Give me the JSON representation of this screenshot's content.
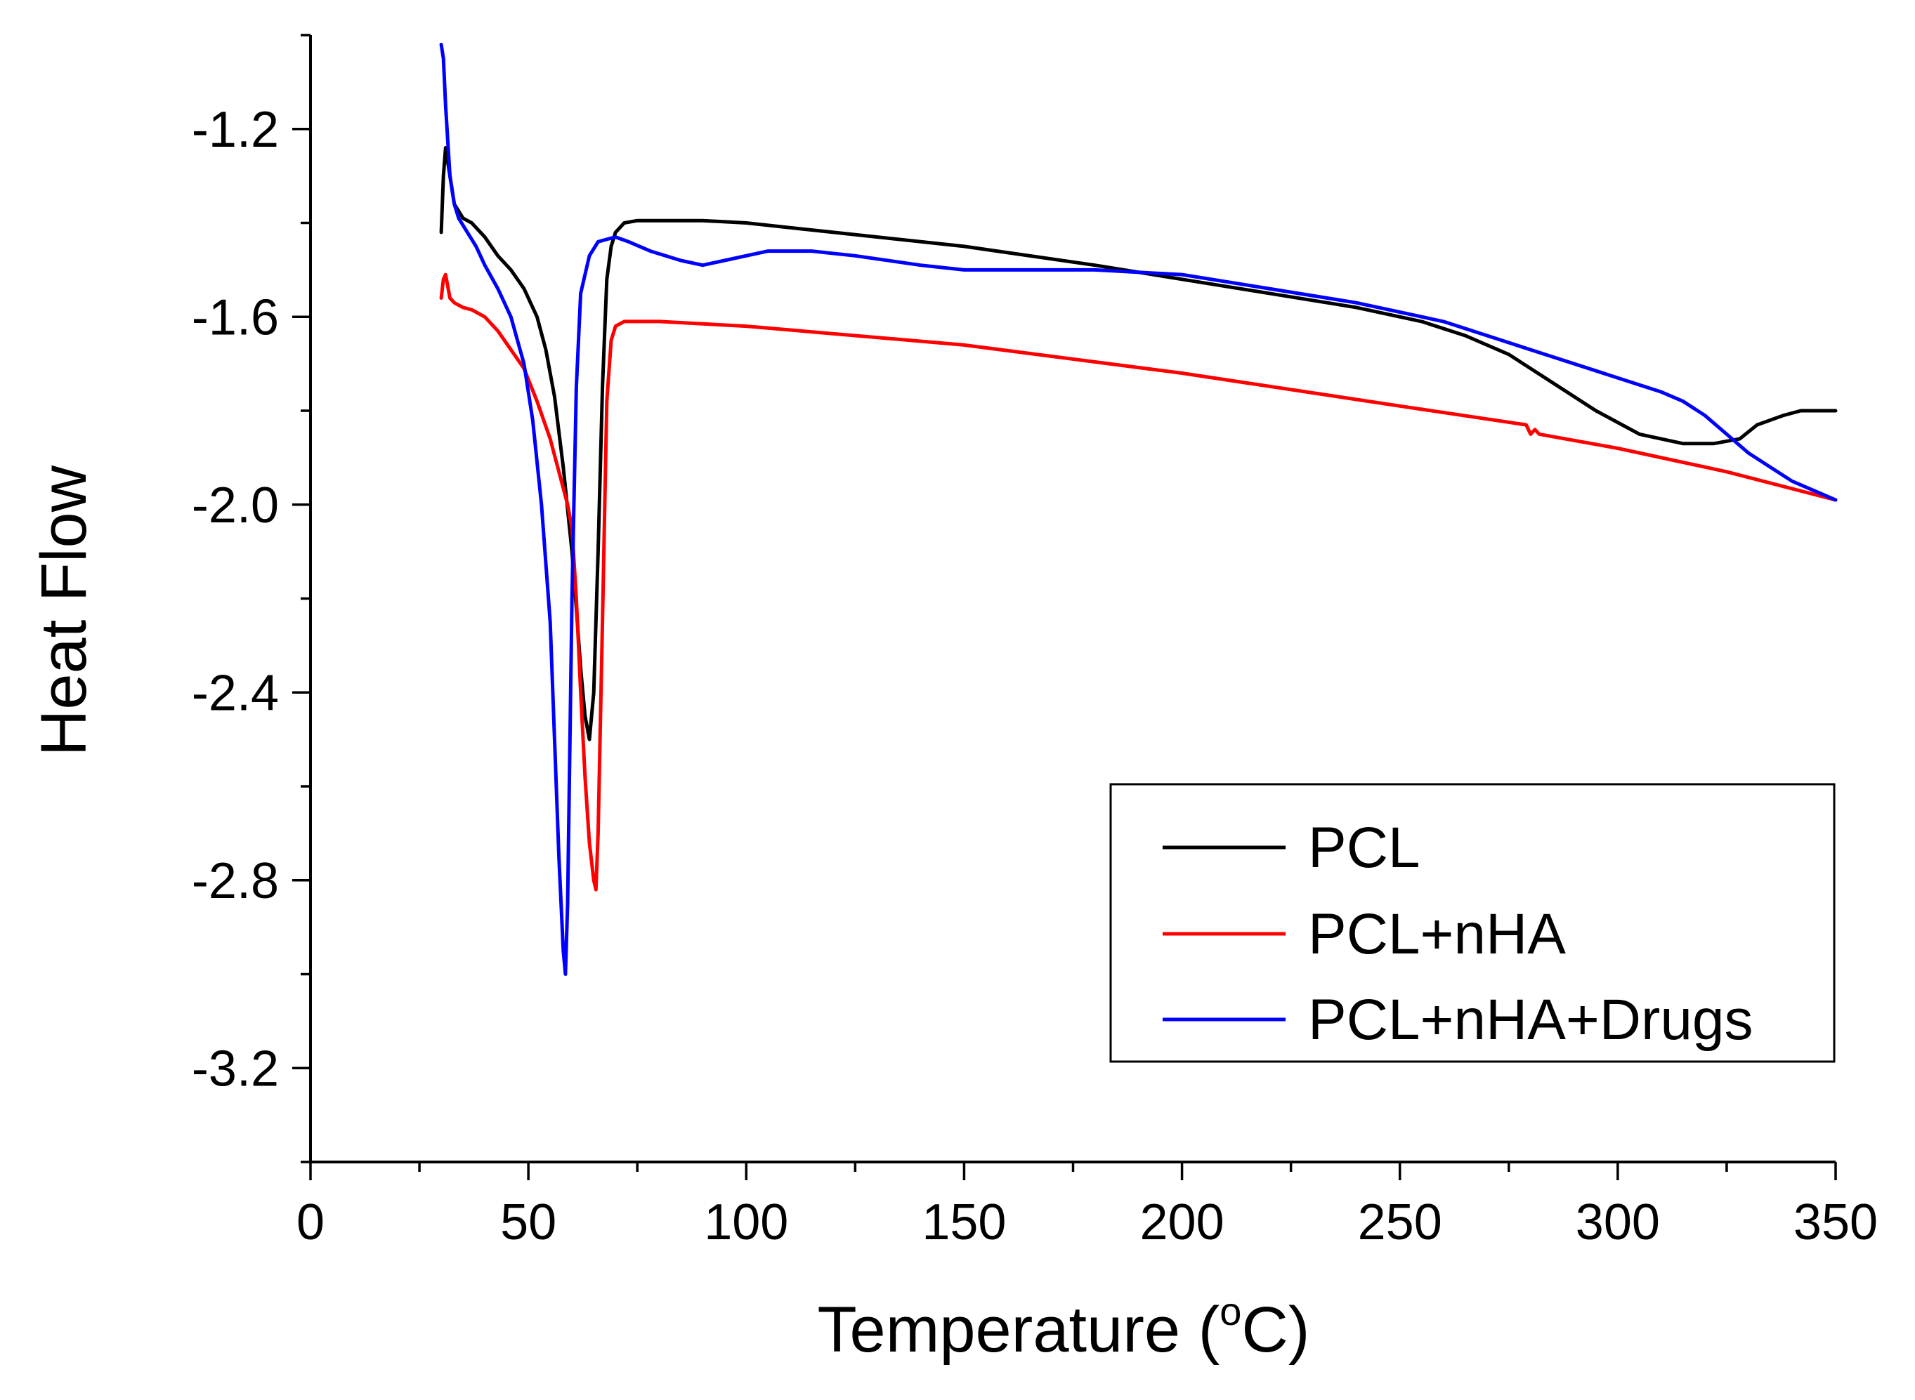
{
  "chart_data": {
    "type": "line",
    "title": "",
    "xlabel": "Temperature (",
    "xlabel_sup": "o",
    "xlabel_suffix": "C)",
    "ylabel": "Heat Flow",
    "xlim": [
      0,
      350
    ],
    "ylim": [
      -3.4,
      -1.0
    ],
    "xticks": [
      0,
      50,
      100,
      150,
      200,
      250,
      300,
      350
    ],
    "xtick_labels": [
      "0",
      "50",
      "100",
      "150",
      "200",
      "250",
      "300",
      "350"
    ],
    "yticks": [
      -1.2,
      -1.6,
      -2.0,
      -2.4,
      -2.8,
      -3.2
    ],
    "ytick_labels": [
      "-1.2",
      "-1.6",
      "-2.0",
      "-2.4",
      "-2.8",
      "-3.2"
    ],
    "grid": false,
    "legend_position": "bottom-right",
    "series": [
      {
        "name": "PCL",
        "color": "#000000",
        "x": [
          30,
          30.5,
          31,
          32,
          33,
          35,
          37,
          40,
          43,
          46,
          49,
          52,
          54,
          56,
          58,
          60,
          61,
          62,
          63,
          64,
          65,
          66,
          67,
          68,
          69,
          70,
          72,
          75,
          80,
          90,
          100,
          120,
          150,
          180,
          200,
          220,
          240,
          255,
          265,
          275,
          285,
          295,
          305,
          315,
          322,
          328,
          332,
          338,
          342,
          346,
          350
        ],
        "y": [
          -1.42,
          -1.3,
          -1.24,
          -1.3,
          -1.36,
          -1.39,
          -1.4,
          -1.43,
          -1.47,
          -1.5,
          -1.54,
          -1.6,
          -1.67,
          -1.77,
          -1.92,
          -2.1,
          -2.22,
          -2.35,
          -2.45,
          -2.5,
          -2.4,
          -2.1,
          -1.75,
          -1.52,
          -1.45,
          -1.42,
          -1.4,
          -1.395,
          -1.395,
          -1.395,
          -1.4,
          -1.42,
          -1.45,
          -1.49,
          -1.52,
          -1.55,
          -1.58,
          -1.61,
          -1.64,
          -1.68,
          -1.74,
          -1.8,
          -1.85,
          -1.87,
          -1.87,
          -1.86,
          -1.83,
          -1.81,
          -1.8,
          -1.8,
          -1.8
        ]
      },
      {
        "name": "PCL+nHA",
        "color": "#ff0000",
        "x": [
          30,
          30.5,
          31,
          32,
          33,
          35,
          37,
          40,
          43,
          46,
          49,
          52,
          55,
          57,
          59,
          60,
          61,
          62,
          63,
          64,
          65,
          65.5,
          66,
          67,
          68,
          69,
          70,
          72,
          75,
          80,
          100,
          150,
          200,
          250,
          279,
          280,
          281,
          282,
          300,
          325,
          350
        ],
        "y": [
          -1.56,
          -1.52,
          -1.51,
          -1.56,
          -1.57,
          -1.58,
          -1.585,
          -1.6,
          -1.63,
          -1.67,
          -1.71,
          -1.78,
          -1.86,
          -1.93,
          -2.0,
          -2.05,
          -2.2,
          -2.4,
          -2.58,
          -2.72,
          -2.8,
          -2.82,
          -2.7,
          -2.25,
          -1.78,
          -1.65,
          -1.62,
          -1.61,
          -1.61,
          -1.61,
          -1.62,
          -1.66,
          -1.72,
          -1.79,
          -1.83,
          -1.85,
          -1.84,
          -1.85,
          -1.88,
          -1.93,
          -1.99
        ]
      },
      {
        "name": "PCL+nHA+Drugs",
        "color": "#0000ff",
        "x": [
          30,
          30.5,
          31,
          32,
          33,
          34,
          36,
          38,
          40,
          43,
          46,
          49,
          51,
          53,
          55,
          56,
          57,
          58,
          58.5,
          59,
          60,
          61,
          62,
          64,
          66,
          68,
          70,
          73,
          78,
          85,
          90,
          95,
          105,
          115,
          125,
          140,
          150,
          160,
          180,
          200,
          220,
          240,
          260,
          280,
          300,
          310,
          315,
          320,
          325,
          330,
          335,
          340,
          345,
          350
        ],
        "y": [
          -1.02,
          -1.05,
          -1.15,
          -1.3,
          -1.36,
          -1.39,
          -1.42,
          -1.45,
          -1.49,
          -1.54,
          -1.6,
          -1.7,
          -1.82,
          -2.0,
          -2.25,
          -2.5,
          -2.75,
          -2.95,
          -3.0,
          -2.85,
          -2.2,
          -1.75,
          -1.55,
          -1.47,
          -1.44,
          -1.435,
          -1.43,
          -1.44,
          -1.46,
          -1.48,
          -1.49,
          -1.48,
          -1.46,
          -1.46,
          -1.47,
          -1.49,
          -1.5,
          -1.5,
          -1.5,
          -1.51,
          -1.54,
          -1.57,
          -1.61,
          -1.67,
          -1.73,
          -1.76,
          -1.78,
          -1.81,
          -1.85,
          -1.89,
          -1.92,
          -1.95,
          -1.97,
          -1.99
        ]
      }
    ]
  }
}
